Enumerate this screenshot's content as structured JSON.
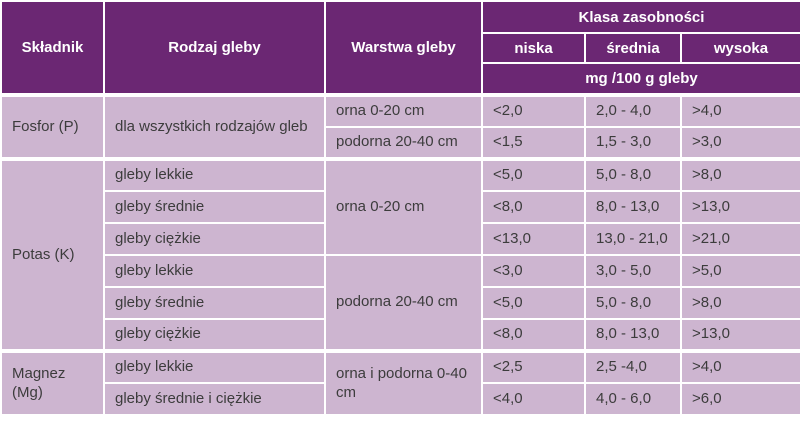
{
  "table": {
    "colors": {
      "header_bg": "#6b2773",
      "header_text": "#ffffff",
      "cell_bg": "#cdb5d0",
      "cell_text": "#3c3c3c",
      "grid": "#ffffff"
    },
    "headers": {
      "skladnik": "Składnik",
      "rodzaj_gleby": "Rodzaj gleby",
      "warstwa_gleby": "Warstwa gleby",
      "klasa_zasobnosci": "Klasa zasobności",
      "levels": [
        "niska",
        "średnia",
        "wysoka"
      ],
      "unit": "mg /100 g gleby"
    },
    "sections": [
      {
        "skladnik": "Fosfor (P)",
        "rows": [
          {
            "rodzaj": {
              "text": "dla wszystkich rodzajów gleb",
              "rowspan": 2
            },
            "warstwa": {
              "text": "orna 0-20 cm",
              "rowspan": 1
            },
            "niska": "<2,0",
            "srednia": "2,0 - 4,0",
            "wysoka": ">4,0"
          },
          {
            "rodzaj": null,
            "warstwa": {
              "text": "podorna 20-40 cm",
              "rowspan": 1
            },
            "niska": "<1,5",
            "srednia": "1,5 - 3,0",
            "wysoka": ">3,0"
          }
        ]
      },
      {
        "skladnik": "Potas (K)",
        "rows": [
          {
            "rodzaj": {
              "text": "gleby lekkie",
              "rowspan": 1
            },
            "warstwa": {
              "text": "orna 0-20 cm",
              "rowspan": 3
            },
            "niska": "<5,0",
            "srednia": "5,0 - 8,0",
            "wysoka": ">8,0"
          },
          {
            "rodzaj": {
              "text": "gleby średnie",
              "rowspan": 1
            },
            "warstwa": null,
            "niska": "<8,0",
            "srednia": "8,0 - 13,0",
            "wysoka": ">13,0"
          },
          {
            "rodzaj": {
              "text": "gleby ciężkie",
              "rowspan": 1
            },
            "warstwa": null,
            "niska": "<13,0",
            "srednia": "13,0 - 21,0",
            "wysoka": ">21,0"
          },
          {
            "rodzaj": {
              "text": "gleby lekkie",
              "rowspan": 1
            },
            "warstwa": {
              "text": "podorna 20-40 cm",
              "rowspan": 3
            },
            "niska": "<3,0",
            "srednia": "3,0 - 5,0",
            "wysoka": ">5,0"
          },
          {
            "rodzaj": {
              "text": "gleby średnie",
              "rowspan": 1
            },
            "warstwa": null,
            "niska": "<5,0",
            "srednia": "5,0 - 8,0",
            "wysoka": ">8,0"
          },
          {
            "rodzaj": {
              "text": "gleby ciężkie",
              "rowspan": 1
            },
            "warstwa": null,
            "niska": "<8,0",
            "srednia": "8,0 - 13,0",
            "wysoka": ">13,0"
          }
        ]
      },
      {
        "skladnik": "Magnez (Mg)",
        "rows": [
          {
            "rodzaj": {
              "text": "gleby lekkie",
              "rowspan": 1
            },
            "warstwa": {
              "text": "orna i podorna 0-40 cm",
              "rowspan": 2
            },
            "niska": "<2,5",
            "srednia": "2,5 -4,0",
            "wysoka": ">4,0"
          },
          {
            "rodzaj": {
              "text": "gleby średnie i ciężkie",
              "rowspan": 1
            },
            "warstwa": null,
            "niska": "<4,0",
            "srednia": "4,0 - 6,0",
            "wysoka": ">6,0"
          }
        ]
      }
    ]
  }
}
